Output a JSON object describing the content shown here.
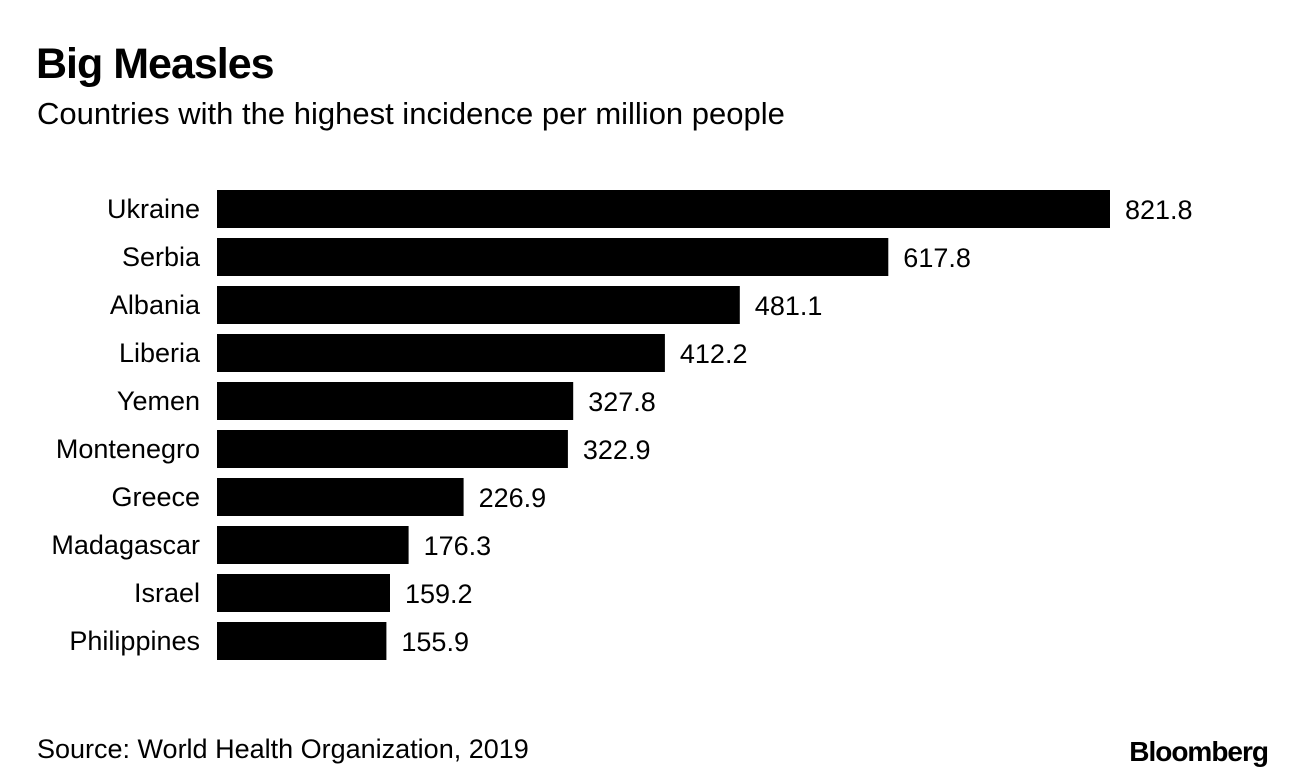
{
  "header": {
    "title": "Big Measles",
    "subtitle": "Countries with the highest incidence per million people"
  },
  "footer": {
    "source": "Source: World Health Organization, 2019",
    "logo_text": "Bloomberg"
  },
  "colors": {
    "bar": "#000000",
    "background": "#ffffff"
  },
  "chart_data": {
    "type": "bar",
    "orientation": "horizontal",
    "title": "Big Measles",
    "subtitle": "Countries with the highest incidence per million people",
    "categories": [
      "Ukraine",
      "Serbia",
      "Albania",
      "Liberia",
      "Yemen",
      "Montenegro",
      "Greece",
      "Madagascar",
      "Israel",
      "Philippines"
    ],
    "values": [
      821.8,
      617.8,
      481.1,
      412.2,
      327.8,
      322.9,
      226.9,
      176.3,
      159.2,
      155.9
    ],
    "value_labels": [
      "821.8",
      "617.8",
      "481.1",
      "412.2",
      "327.8",
      "322.9",
      "226.9",
      "176.3",
      "159.2",
      "155.9"
    ],
    "xlim": [
      0,
      821.8
    ],
    "grid": false,
    "legend": "none",
    "data_labels": "end-of-bar"
  }
}
